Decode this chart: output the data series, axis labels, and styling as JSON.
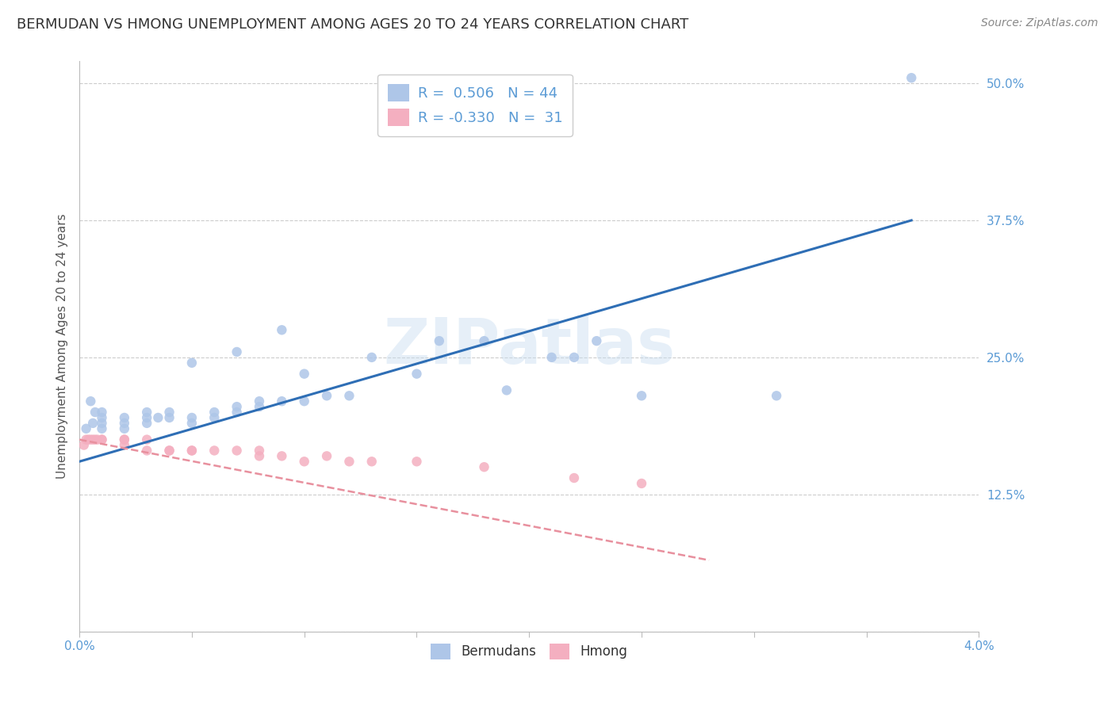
{
  "title": "BERMUDAN VS HMONG UNEMPLOYMENT AMONG AGES 20 TO 24 YEARS CORRELATION CHART",
  "source": "Source: ZipAtlas.com",
  "ylabel": "Unemployment Among Ages 20 to 24 years",
  "xlim": [
    0.0,
    0.04
  ],
  "ylim": [
    0.0,
    0.52
  ],
  "yticks": [
    0.0,
    0.125,
    0.25,
    0.375,
    0.5
  ],
  "ytick_labels": [
    "",
    "12.5%",
    "25.0%",
    "37.5%",
    "50.0%"
  ],
  "xtick_vals": [
    0.0,
    0.005,
    0.01,
    0.015,
    0.02,
    0.025,
    0.03,
    0.035,
    0.04
  ],
  "xtick_labels": [
    "0.0%",
    "",
    "",
    "",
    "",
    "",
    "",
    "",
    "4.0%"
  ],
  "grid_color": "#cccccc",
  "background_color": "#ffffff",
  "title_color": "#333333",
  "title_fontsize": 13,
  "axis_tick_color": "#5b9bd5",
  "legend_text_color": "#5b9bd5",
  "legend_label_color": "#222222",
  "watermark_text": "ZIPatlas",
  "bermudan_color": "#aec6e8",
  "hmong_color": "#f4afc0",
  "trend_bermudan_color": "#2e6eb5",
  "trend_hmong_color": "#e8909e",
  "bermudan_scatter_x": [
    0.0003,
    0.0005,
    0.0006,
    0.0007,
    0.001,
    0.001,
    0.001,
    0.001,
    0.002,
    0.002,
    0.002,
    0.003,
    0.003,
    0.003,
    0.0035,
    0.004,
    0.004,
    0.005,
    0.005,
    0.005,
    0.006,
    0.006,
    0.007,
    0.007,
    0.007,
    0.008,
    0.008,
    0.009,
    0.009,
    0.01,
    0.01,
    0.011,
    0.012,
    0.013,
    0.015,
    0.016,
    0.018,
    0.019,
    0.021,
    0.022,
    0.023,
    0.025,
    0.031,
    0.037
  ],
  "bermudan_scatter_y": [
    0.185,
    0.21,
    0.19,
    0.2,
    0.185,
    0.19,
    0.195,
    0.2,
    0.185,
    0.195,
    0.19,
    0.19,
    0.195,
    0.2,
    0.195,
    0.195,
    0.2,
    0.19,
    0.195,
    0.245,
    0.195,
    0.2,
    0.2,
    0.205,
    0.255,
    0.205,
    0.21,
    0.21,
    0.275,
    0.21,
    0.235,
    0.215,
    0.215,
    0.25,
    0.235,
    0.265,
    0.265,
    0.22,
    0.25,
    0.25,
    0.265,
    0.215,
    0.215,
    0.505
  ],
  "hmong_scatter_x": [
    0.0002,
    0.0003,
    0.0004,
    0.0005,
    0.0006,
    0.0007,
    0.0008,
    0.001,
    0.001,
    0.002,
    0.002,
    0.002,
    0.003,
    0.003,
    0.004,
    0.004,
    0.005,
    0.005,
    0.006,
    0.007,
    0.008,
    0.008,
    0.009,
    0.01,
    0.011,
    0.012,
    0.013,
    0.015,
    0.018,
    0.022,
    0.025
  ],
  "hmong_scatter_y": [
    0.17,
    0.175,
    0.175,
    0.175,
    0.175,
    0.175,
    0.175,
    0.175,
    0.175,
    0.175,
    0.175,
    0.17,
    0.175,
    0.165,
    0.165,
    0.165,
    0.165,
    0.165,
    0.165,
    0.165,
    0.16,
    0.165,
    0.16,
    0.155,
    0.16,
    0.155,
    0.155,
    0.155,
    0.15,
    0.14,
    0.135
  ],
  "trend_bermudan_x0": 0.0,
  "trend_bermudan_x1": 0.037,
  "trend_bermudan_y0": 0.155,
  "trend_bermudan_y1": 0.375,
  "trend_hmong_x0": 0.0,
  "trend_hmong_x1": 0.028,
  "trend_hmong_y0": 0.175,
  "trend_hmong_y1": 0.065
}
